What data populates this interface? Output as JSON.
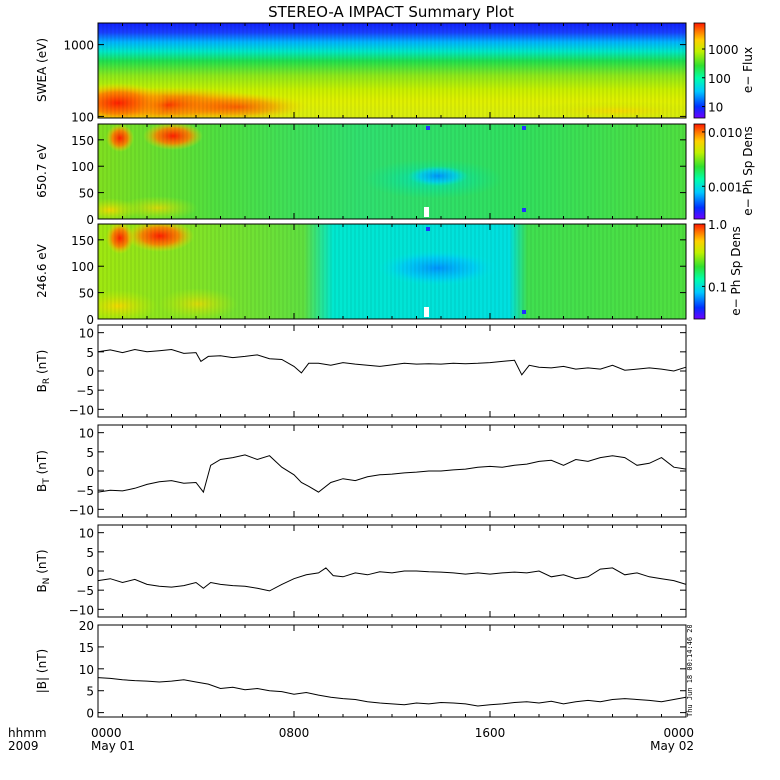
{
  "title": "STEREO-A IMPACT Summary Plot",
  "footer": {
    "hhmm": "hhmm",
    "year": "2009",
    "ticks": [
      {
        "top": "0000",
        "bottom": "May 01"
      },
      {
        "top": "0800",
        "bottom": ""
      },
      {
        "top": "1600",
        "bottom": ""
      },
      {
        "top": "0000",
        "bottom": "May 02"
      }
    ]
  },
  "timestamp": "Thu Jun 18 00:14:46 2010",
  "chart_data": [
    {
      "type": "heatmap",
      "panel": "swea",
      "ylabel": "SWEA (eV)",
      "yscale": "log",
      "ylim": [
        95,
        2000
      ],
      "yticks": [
        {
          "v": 100,
          "label": "100"
        },
        {
          "v": 1000,
          "label": "1000"
        }
      ],
      "colorbar": {
        "label": "e− Flux",
        "scale": "log",
        "range": [
          4,
          8000
        ],
        "ticks": [
          {
            "v": 10,
            "label": "10"
          },
          {
            "v": 100,
            "label": "100"
          },
          {
            "v": 1000,
            "label": "1000"
          }
        ]
      },
      "xlim": [
        0,
        24
      ]
    },
    {
      "type": "heatmap",
      "panel": "pad650",
      "ylabel": "650.7 eV",
      "ylim": [
        0,
        180
      ],
      "yticks": [
        {
          "v": 0,
          "label": "0"
        },
        {
          "v": 50,
          "label": "50"
        },
        {
          "v": 100,
          "label": "100"
        },
        {
          "v": 150,
          "label": "150"
        }
      ],
      "colorbar": {
        "label": "e− Ph Sp Dens",
        "scale": "log",
        "range": [
          0.00025,
          0.014
        ],
        "ticks": [
          {
            "v": 0.001,
            "label": "0.001"
          },
          {
            "v": 0.01,
            "label": "0.010"
          }
        ]
      },
      "xlim": [
        0,
        24
      ]
    },
    {
      "type": "heatmap",
      "panel": "pad246",
      "ylabel": "246.6 eV",
      "ylim": [
        0,
        180
      ],
      "yticks": [
        {
          "v": 0,
          "label": "0"
        },
        {
          "v": 50,
          "label": "50"
        },
        {
          "v": 100,
          "label": "100"
        },
        {
          "v": 150,
          "label": "150"
        }
      ],
      "colorbar": {
        "label": "e− Ph Sp Dens",
        "scale": "log",
        "range": [
          0.03,
          1.0
        ],
        "ticks": [
          {
            "v": 0.1,
            "label": "0.1"
          },
          {
            "v": 1.0,
            "label": "1.0"
          }
        ]
      },
      "xlim": [
        0,
        24
      ]
    },
    {
      "type": "line",
      "panel": "br",
      "ylabel": {
        "main": "B",
        "sub": "R",
        "unit": " (nT)"
      },
      "ylim": [
        -12,
        12
      ],
      "yticks": [
        {
          "v": -10,
          "label": "−10"
        },
        {
          "v": -5,
          "label": "−5"
        },
        {
          "v": 0,
          "label": "0"
        },
        {
          "v": 5,
          "label": "5"
        },
        {
          "v": 10,
          "label": "10"
        }
      ],
      "xlim": [
        0,
        24
      ],
      "x": [
        0,
        0.5,
        1,
        1.5,
        2,
        2.5,
        3,
        3.5,
        4,
        4.2,
        4.5,
        5,
        5.5,
        6,
        6.5,
        7,
        7.5,
        8,
        8.3,
        8.6,
        9,
        9.5,
        10,
        10.5,
        11,
        11.5,
        12,
        12.5,
        13,
        13.5,
        14,
        14.5,
        15,
        15.5,
        16,
        16.5,
        17,
        17.3,
        17.6,
        18,
        18.5,
        19,
        19.5,
        20,
        20.5,
        21,
        21.5,
        22,
        22.5,
        23,
        23.5,
        24
      ],
      "y": [
        5,
        5.5,
        4.8,
        5.6,
        5,
        5.3,
        5.6,
        4.6,
        4.8,
        2.5,
        3.8,
        4,
        3.5,
        3.8,
        4.2,
        3.2,
        3,
        1.2,
        -0.5,
        2,
        2,
        1.5,
        2.2,
        1.8,
        1.5,
        1.2,
        1.6,
        2,
        1.8,
        1.9,
        1.8,
        2,
        1.9,
        2,
        2.2,
        2.5,
        2.8,
        -1,
        1.5,
        1,
        0.8,
        1.2,
        0.5,
        0.8,
        0.5,
        1.5,
        0.2,
        0.5,
        0.8,
        0.5,
        0,
        1
      ]
    },
    {
      "type": "line",
      "panel": "bt",
      "ylabel": {
        "main": "B",
        "sub": "T",
        "unit": " (nT)"
      },
      "ylim": [
        -12,
        12
      ],
      "yticks": [
        {
          "v": -10,
          "label": "−10"
        },
        {
          "v": -5,
          "label": "−5"
        },
        {
          "v": 0,
          "label": "0"
        },
        {
          "v": 5,
          "label": "5"
        },
        {
          "v": 10,
          "label": "10"
        }
      ],
      "xlim": [
        0,
        24
      ],
      "x": [
        0,
        0.5,
        1,
        1.5,
        2,
        2.5,
        3,
        3.5,
        4,
        4.3,
        4.6,
        5,
        5.5,
        6,
        6.5,
        7,
        7.5,
        8,
        8.3,
        8.6,
        9,
        9.5,
        10,
        10.5,
        11,
        11.5,
        12,
        12.5,
        13,
        13.5,
        14,
        14.5,
        15,
        15.5,
        16,
        16.5,
        17,
        17.5,
        18,
        18.5,
        19,
        19.5,
        20,
        20.5,
        21,
        21.5,
        22,
        22.5,
        23,
        23.5,
        24
      ],
      "y": [
        -5.5,
        -5,
        -5.2,
        -4.5,
        -3.5,
        -2.8,
        -2.5,
        -3.2,
        -3,
        -5.5,
        1.5,
        3,
        3.5,
        4.2,
        3,
        4,
        1,
        -1,
        -3,
        -4,
        -5.5,
        -3,
        -2,
        -2.5,
        -1.5,
        -1,
        -0.8,
        -0.5,
        -0.3,
        0,
        0,
        0.3,
        0.5,
        1,
        1.2,
        1,
        1.5,
        1.8,
        2.5,
        2.8,
        1.5,
        3,
        2.5,
        3.5,
        4,
        3.5,
        1.5,
        2,
        3.5,
        1,
        0.5
      ]
    },
    {
      "type": "line",
      "panel": "bn",
      "ylabel": {
        "main": "B",
        "sub": "N",
        "unit": " (nT)"
      },
      "ylim": [
        -12,
        12
      ],
      "yticks": [
        {
          "v": -10,
          "label": "−10"
        },
        {
          "v": -5,
          "label": "−5"
        },
        {
          "v": 0,
          "label": "0"
        },
        {
          "v": 5,
          "label": "5"
        },
        {
          "v": 10,
          "label": "10"
        }
      ],
      "xlim": [
        0,
        24
      ],
      "x": [
        0,
        0.5,
        1,
        1.5,
        2,
        2.5,
        3,
        3.5,
        4,
        4.3,
        4.6,
        5,
        5.5,
        6,
        6.5,
        7,
        7.5,
        8,
        8.5,
        9,
        9.3,
        9.6,
        10,
        10.5,
        11,
        11.5,
        12,
        12.5,
        13,
        13.5,
        14,
        14.5,
        15,
        15.5,
        16,
        16.5,
        17,
        17.5,
        18,
        18.5,
        19,
        19.5,
        20,
        20.5,
        21,
        21.5,
        22,
        22.5,
        23,
        23.5,
        24
      ],
      "y": [
        -2.5,
        -2,
        -3,
        -2.2,
        -3.5,
        -4,
        -4.2,
        -3.8,
        -3,
        -4.5,
        -3,
        -3.5,
        -3.8,
        -4,
        -4.5,
        -5.2,
        -3.5,
        -2,
        -1,
        -0.5,
        0.8,
        -1.2,
        -1.5,
        -0.5,
        -1,
        -0.2,
        -0.5,
        0,
        0,
        -0.2,
        -0.3,
        -0.5,
        -0.8,
        -0.5,
        -0.8,
        -0.5,
        -0.3,
        -0.5,
        0,
        -1.5,
        -1,
        -2,
        -1.5,
        0.5,
        0.8,
        -1,
        -0.5,
        -1.5,
        -2,
        -2.5,
        -3.5
      ]
    },
    {
      "type": "line",
      "panel": "bmag",
      "ylabel": {
        "main": "|B|",
        "sub": "",
        "unit": " (nT)"
      },
      "ylim": [
        -1,
        20
      ],
      "yticks": [
        {
          "v": 0,
          "label": "0"
        },
        {
          "v": 5,
          "label": "5"
        },
        {
          "v": 10,
          "label": "10"
        },
        {
          "v": 15,
          "label": "15"
        },
        {
          "v": 20,
          "label": "20"
        }
      ],
      "xlim": [
        0,
        24
      ],
      "x": [
        0,
        0.5,
        1,
        1.5,
        2,
        2.5,
        3,
        3.5,
        4,
        4.5,
        5,
        5.5,
        6,
        6.5,
        7,
        7.5,
        8,
        8.5,
        9,
        9.5,
        10,
        10.5,
        11,
        11.5,
        12,
        12.5,
        13,
        13.5,
        14,
        14.5,
        15,
        15.5,
        16,
        16.5,
        17,
        17.5,
        18,
        18.5,
        19,
        19.5,
        20,
        20.5,
        21,
        21.5,
        22,
        22.5,
        23,
        23.5,
        24
      ],
      "y": [
        8,
        7.8,
        7.5,
        7.3,
        7.2,
        7,
        7.2,
        7.5,
        7,
        6.5,
        5.5,
        5.8,
        5.2,
        5.5,
        5,
        4.8,
        4.2,
        4.6,
        4,
        3.5,
        3.2,
        3,
        2.5,
        2.2,
        2,
        1.8,
        2.2,
        2,
        2.3,
        2.2,
        2,
        1.5,
        1.8,
        2,
        2.3,
        2.5,
        2.2,
        2.6,
        2,
        2.5,
        2.8,
        2.5,
        3,
        3.2,
        3,
        2.8,
        2.5,
        3,
        3.5
      ]
    }
  ]
}
